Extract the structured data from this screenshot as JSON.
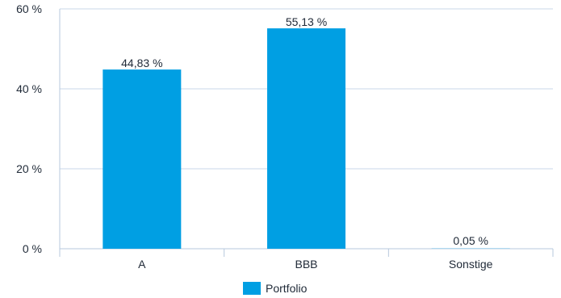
{
  "chart_data": {
    "type": "bar",
    "categories": [
      "A",
      "BBB",
      "Sonstige"
    ],
    "series": [
      {
        "name": "Portfolio",
        "values": [
          44.83,
          55.13,
          0.05
        ],
        "color": "#009fe3"
      }
    ],
    "data_labels": [
      "44,83 %",
      "55,13 %",
      "0,05 %"
    ],
    "y_ticks": [
      {
        "value": 0,
        "label": "0 %"
      },
      {
        "value": 20,
        "label": "20 %"
      },
      {
        "value": 40,
        "label": "40 %"
      },
      {
        "value": 60,
        "label": "60 %"
      }
    ],
    "ylim": [
      0,
      60
    ],
    "grid": true,
    "legend_position": "bottom-center",
    "colors": {
      "grid": "#c9d7e8",
      "axis": "#b7c8dd",
      "bar": "#009fe3"
    }
  }
}
